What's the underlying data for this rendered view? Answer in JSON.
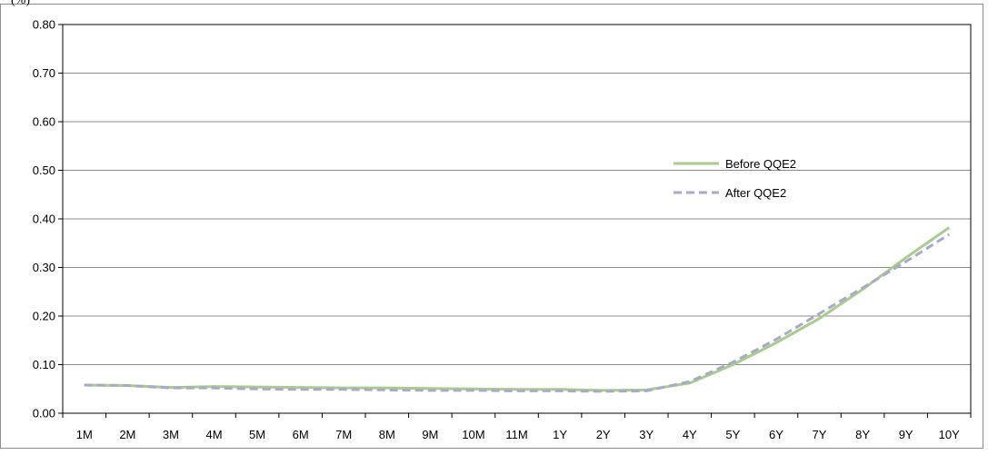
{
  "chart_data": {
    "type": "line",
    "unit_label": "(%)",
    "categories": [
      "1M",
      "2M",
      "3M",
      "4M",
      "5M",
      "6M",
      "7M",
      "8M",
      "9M",
      "10M",
      "11M",
      "1Y",
      "2Y",
      "3Y",
      "4Y",
      "5Y",
      "6Y",
      "7Y",
      "8Y",
      "9Y",
      "10Y"
    ],
    "y_ticks": [
      "0.00",
      "0.10",
      "0.20",
      "0.30",
      "0.40",
      "0.50",
      "0.60",
      "0.70",
      "0.80"
    ],
    "ylim": [
      0,
      0.8
    ],
    "grid": "horizontal",
    "legend_position": "right",
    "series": [
      {
        "name": "Before QQE2",
        "color": "#a8cc8c",
        "style": "solid",
        "values": [
          0.058,
          0.057,
          0.053,
          0.055,
          0.054,
          0.053,
          0.052,
          0.052,
          0.051,
          0.05,
          0.049,
          0.049,
          0.047,
          0.048,
          0.062,
          0.1,
          0.145,
          0.195,
          0.255,
          0.32,
          0.382
        ]
      },
      {
        "name": "After QQE2",
        "color": "#a9a9c9",
        "style": "dashed",
        "values": [
          0.058,
          0.057,
          0.052,
          0.052,
          0.05,
          0.049,
          0.049,
          0.048,
          0.047,
          0.047,
          0.046,
          0.046,
          0.045,
          0.046,
          0.065,
          0.105,
          0.152,
          0.205,
          0.258,
          0.312,
          0.368
        ]
      }
    ]
  }
}
